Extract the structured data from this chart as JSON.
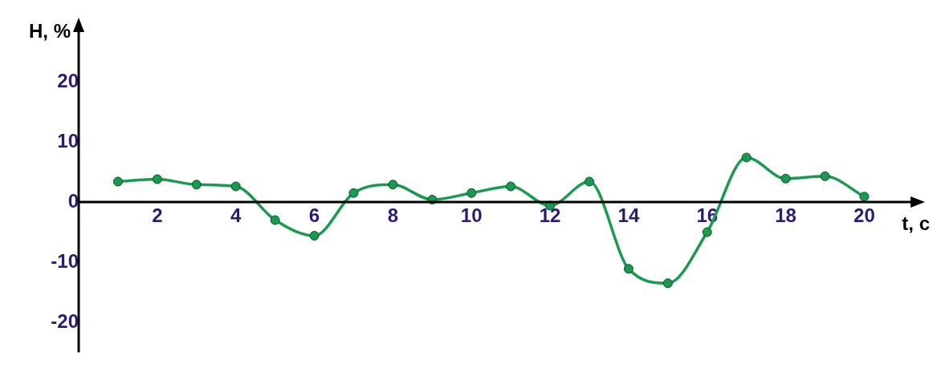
{
  "chart_data": {
    "type": "line",
    "xlabel": "t, c",
    "ylabel": "H, %",
    "x": [
      1,
      2,
      3,
      4,
      5,
      6,
      7,
      8,
      9,
      10,
      11,
      12,
      13,
      14,
      15,
      16,
      17,
      18,
      19,
      20
    ],
    "series": [
      {
        "color": "#1a9a50",
        "values": [
          3.4,
          3.8,
          2.9,
          2.6,
          -3.0,
          -5.6,
          1.5,
          2.9,
          0.4,
          1.5,
          2.6,
          -0.6,
          3.4,
          -11.1,
          -13.5,
          -5.0,
          7.4,
          3.9,
          4.3,
          0.9
        ]
      }
    ],
    "xlim": [
      0,
      21.3
    ],
    "ylim": [
      -25,
      29
    ],
    "xticks": [
      2,
      4,
      6,
      8,
      10,
      12,
      14,
      16,
      18,
      20
    ],
    "yticks": [
      -20,
      -10,
      0,
      10,
      20
    ],
    "grid": false,
    "legend": false,
    "marker": "circle",
    "line_style": "solid"
  }
}
